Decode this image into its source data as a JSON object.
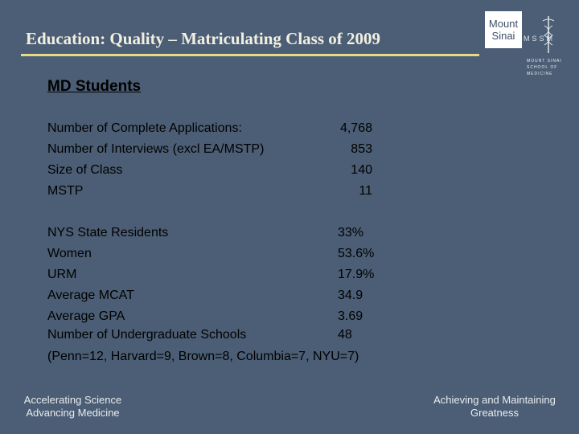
{
  "header": {
    "title": "Education: Quality – Matriculating Class of 2009"
  },
  "logo": {
    "line1": "Mount",
    "line2": "Sinai",
    "monogram": "MSSM",
    "caption1": "MOUNT SINAI",
    "caption2": "SCHOOL OF",
    "caption3": "MEDICINE"
  },
  "section": {
    "heading": "MD Students"
  },
  "table1": [
    {
      "label": "Number of Complete Applications:",
      "value": "4,768"
    },
    {
      "label": "Number of Interviews (excl EA/MSTP)",
      "value": "853"
    },
    {
      "label": "Size of Class",
      "value": "140"
    },
    {
      "label": "MSTP",
      "value": "11"
    }
  ],
  "table2": [
    {
      "label": "NYS State Residents",
      "value": "33%"
    },
    {
      "label": "Women",
      "value": "53.6%"
    },
    {
      "label": "URM",
      "value": "17.9%"
    },
    {
      "label": "Average MCAT",
      "value": "34.9"
    },
    {
      "label": "Average GPA",
      "value": "3.69"
    },
    {
      "label": "Number of Undergraduate Schools",
      "value": "48"
    }
  ],
  "note": "(Penn=12, Harvard=9, Brown=8, Columbia=7, NYU=7)",
  "footer": {
    "left_line1": "Accelerating Science",
    "left_line2": "Advancing Medicine",
    "right_line1": "Achieving and Maintaining",
    "right_line2": "Greatness"
  },
  "colors": {
    "background": "#4b5e75",
    "title": "#f2efe0",
    "rule": "#e7d98a"
  },
  "icons": [
    "caduceus-icon"
  ]
}
